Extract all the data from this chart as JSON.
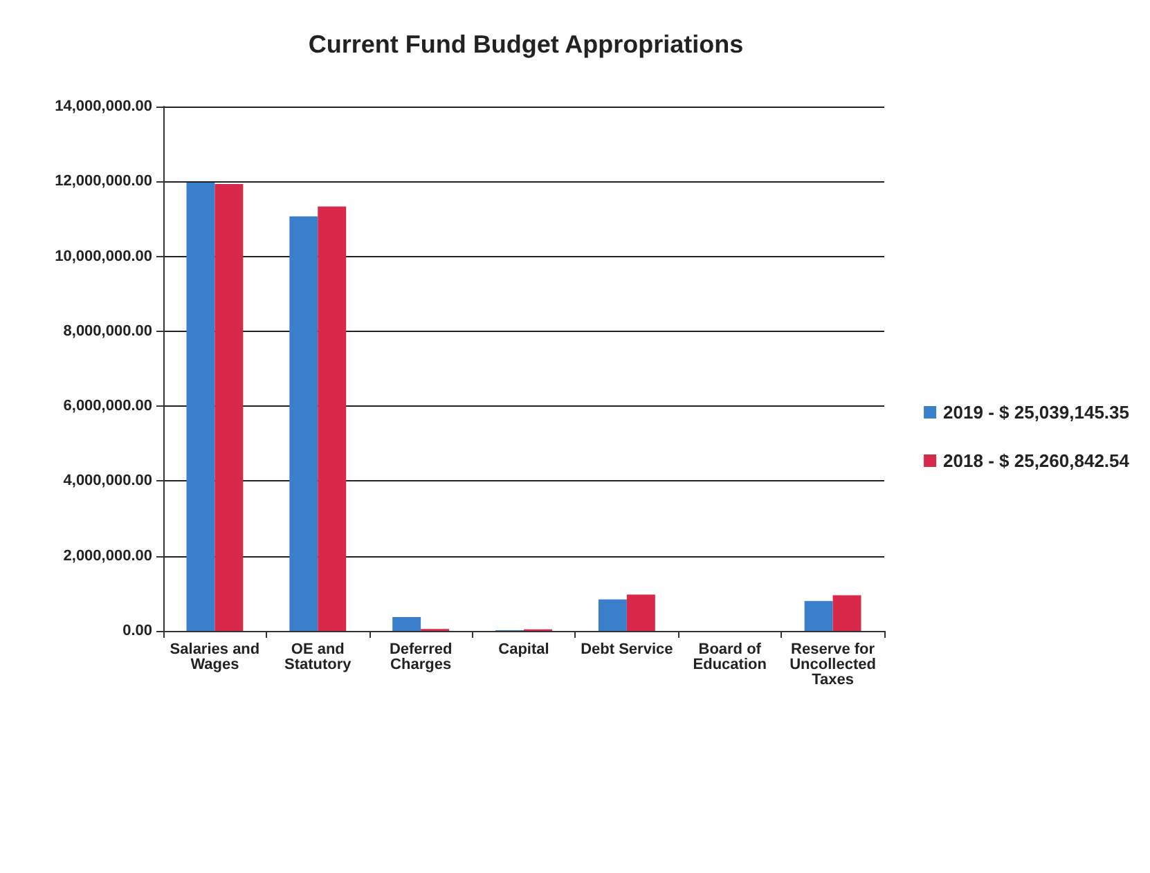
{
  "chart_data": {
    "type": "bar",
    "title": "Current Fund Budget Appropriations",
    "categories": [
      "Salaries and\nWages",
      "OE and\nStatutory",
      "Deferred\nCharges",
      "Capital",
      "Debt Service",
      "Board of\nEducation",
      "Reserve for\nUncollected\nTaxes"
    ],
    "series": [
      {
        "name": "2019 - $ 25,039,145.35",
        "color": "#3a7fcb",
        "values": [
          11970000,
          11070000,
          370000,
          20000,
          840000,
          0,
          800000
        ]
      },
      {
        "name": "2018 - $ 25,260,842.54",
        "color": "#d9294a",
        "values": [
          11930000,
          11330000,
          50000,
          40000,
          970000,
          0,
          950000
        ]
      }
    ],
    "ylim": [
      0,
      14000000
    ],
    "yticks": [
      {
        "value": 0,
        "label": "0.00"
      },
      {
        "value": 2000000,
        "label": "2,000,000.00"
      },
      {
        "value": 4000000,
        "label": "4,000,000.00"
      },
      {
        "value": 6000000,
        "label": "6,000,000.00"
      },
      {
        "value": 8000000,
        "label": "8,000,000.00"
      },
      {
        "value": 10000000,
        "label": "10,000,000.00"
      },
      {
        "value": 12000000,
        "label": "12,000,000.00"
      },
      {
        "value": 14000000,
        "label": "14,000,000.00"
      }
    ],
    "grid": "y",
    "legend": "right"
  }
}
